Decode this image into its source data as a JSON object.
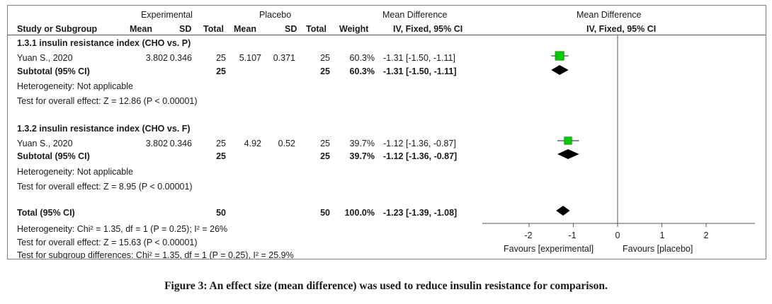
{
  "header": {
    "group1": "Experimental",
    "group2": "Placebo",
    "effect_col_title": "Mean Difference",
    "plot_col_title": "Mean Difference",
    "study_col": "Study or Subgroup",
    "mean1": "Mean",
    "sd1": "SD",
    "total1": "Total",
    "mean2": "Mean",
    "sd2": "SD",
    "total2": "Total",
    "weight": "Weight",
    "effect_method": "IV, Fixed, 95% CI",
    "plot_method": "IV, Fixed, 95% CI"
  },
  "subgroups": [
    {
      "title": "1.3.1 insulin resistance index (CHO vs. P)",
      "study": {
        "name": "Yuan S., 2020",
        "mean1": "3.802",
        "sd1": "0.346",
        "total1": "25",
        "mean2": "5.107",
        "sd2": "0.371",
        "total2": "25",
        "weight": "60.3%",
        "ci": "-1.31 [-1.50, -1.11]"
      },
      "subtotal": {
        "label": "Subtotal (95% CI)",
        "total1": "25",
        "total2": "25",
        "weight": "60.3%",
        "ci": "-1.31 [-1.50, -1.11]"
      },
      "heterogeneity": "Heterogeneity: Not applicable",
      "overall": "Test for overall effect: Z = 12.86 (P < 0.00001)"
    },
    {
      "title": "1.3.2 insulin resistance index (CHO vs. F)",
      "study": {
        "name": "Yuan S., 2020",
        "mean1": "3.802",
        "sd1": "0.346",
        "total1": "25",
        "mean2": "4.92",
        "sd2": "0.52",
        "total2": "25",
        "weight": "39.7%",
        "ci": "-1.12 [-1.36, -0.87]"
      },
      "subtotal": {
        "label": "Subtotal (95% CI)",
        "total1": "25",
        "total2": "25",
        "weight": "39.7%",
        "ci": "-1.12 [-1.36, -0.87]"
      },
      "heterogeneity": "Heterogeneity: Not applicable",
      "overall": "Test for overall effect: Z = 8.95 (P < 0.00001)"
    }
  ],
  "total": {
    "label": "Total (95% CI)",
    "total1": "50",
    "total2": "50",
    "weight": "100.0%",
    "ci": "-1.23 [-1.39, -1.08]",
    "heterogeneity": "Heterogeneity: Chi² = 1.35, df = 1 (P = 0.25); I² = 26%",
    "overall": "Test for overall effect: Z = 15.63 (P < 0.00001)",
    "subgroup_diff": "Test for subgroup differences: Chi² = 1.35, df = 1 (P = 0.25), I² = 25.9%"
  },
  "caption": "Figure 3: An effect size (mean difference) was used to reduce insulin resistance for comparison.",
  "chart_data": {
    "type": "scatter",
    "xlim": [
      -3,
      3
    ],
    "x_ticks": [
      -2,
      -1,
      0,
      1,
      2
    ],
    "x_tick_labels": [
      "-2",
      "-1",
      "0",
      "1",
      "2"
    ],
    "favours_left": "Favours [experimental]",
    "favours_right": "Favours [placebo]",
    "studies": [
      {
        "md": -1.31,
        "lo": -1.5,
        "hi": -1.11,
        "weight": 60.3
      },
      {
        "md": -1.12,
        "lo": -1.36,
        "hi": -0.87,
        "weight": 39.7
      }
    ],
    "subtotals": [
      {
        "md": -1.31,
        "lo": -1.5,
        "hi": -1.11
      },
      {
        "md": -1.12,
        "lo": -1.36,
        "hi": -0.87
      }
    ],
    "overall": {
      "md": -1.23,
      "lo": -1.39,
      "hi": -1.08
    },
    "colors": {
      "study_marker": "#00cc00",
      "diamond": "#000000"
    }
  }
}
